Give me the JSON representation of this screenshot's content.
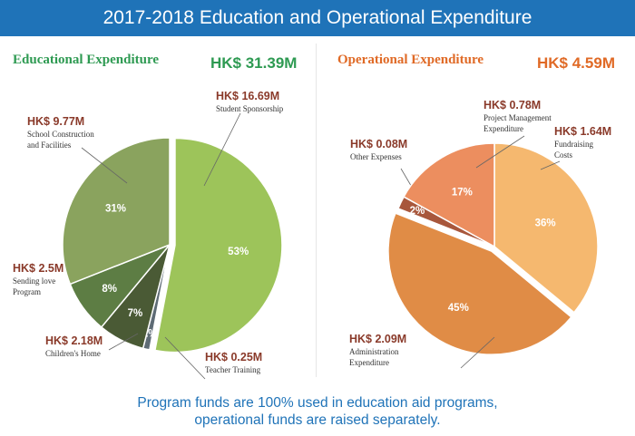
{
  "header": {
    "title": "2017-2018 Education and Operational Expenditure"
  },
  "footer": {
    "line1": "Program funds are 100% used in education aid programs,",
    "line2": "operational funds are raised separately."
  },
  "colors": {
    "banner": "#1f73b8",
    "education_heading": "#2e9a52",
    "operational_heading": "#e06a26",
    "callout_amount": "#8a3a2a"
  },
  "chart_data": [
    {
      "type": "pie",
      "title": "Educational Expenditure",
      "total": "HK$ 31.39M",
      "series": [
        {
          "amount": "HK$ 16.69M",
          "labels": [
            "Student Sponsorship"
          ],
          "value": 53,
          "pct": "53%",
          "color": "#9dc45a"
        },
        {
          "amount": "HK$ 0.25M",
          "labels": [
            "Teacher Training"
          ],
          "value": 1,
          "pct": "1%",
          "color": "#5e6b75"
        },
        {
          "amount": "HK$ 2.18M",
          "labels": [
            "Children's Home"
          ],
          "value": 7,
          "pct": "7%",
          "color": "#4a5a35"
        },
        {
          "amount": "HK$ 2.5M",
          "labels": [
            "Sending love",
            "Program"
          ],
          "value": 8,
          "pct": "8%",
          "color": "#5d7d44"
        },
        {
          "amount": "HK$ 9.77M",
          "labels": [
            "School Construction",
            "and Facilities"
          ],
          "value": 31,
          "pct": "31%",
          "color": "#8aa35e"
        }
      ]
    },
    {
      "type": "pie",
      "title": "Operational Expenditure",
      "total": "HK$ 4.59M",
      "series": [
        {
          "amount": "HK$ 1.64M",
          "labels": [
            "Fundraising",
            "Costs"
          ],
          "value": 36,
          "pct": "36%",
          "color": "#f5b86f"
        },
        {
          "amount": "HK$ 2.09M",
          "labels": [
            "Administration",
            "Expenditure"
          ],
          "value": 45,
          "pct": "45%",
          "color": "#e08c46"
        },
        {
          "amount": "HK$ 0.08M",
          "labels": [
            "Other Expenses"
          ],
          "value": 2,
          "pct": "2%",
          "color": "#a8573c"
        },
        {
          "amount": "HK$ 0.78M",
          "labels": [
            "Project Management",
            "Expenditure"
          ],
          "value": 17,
          "pct": "17%",
          "color": "#ec8e5f"
        }
      ]
    }
  ]
}
